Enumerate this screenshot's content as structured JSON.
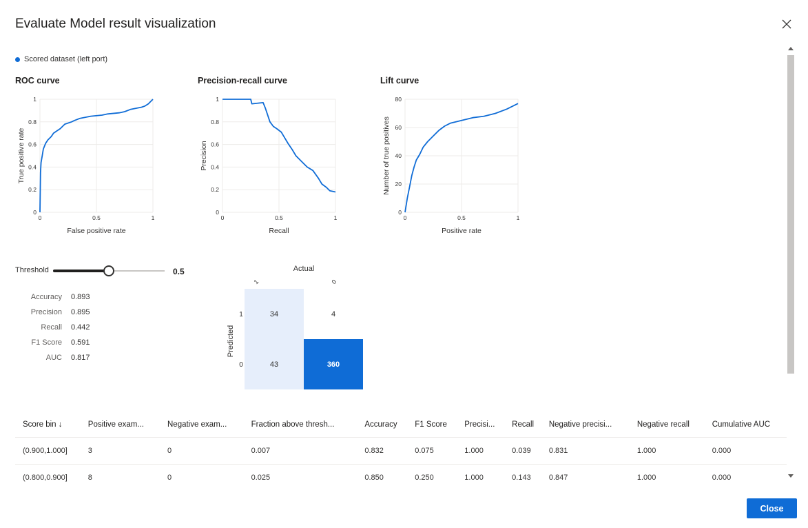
{
  "dialog": {
    "title": "Evaluate Model result visualization",
    "close_icon": "close-icon",
    "close_label": "Close"
  },
  "legend": {
    "label": "Scored dataset (left port)",
    "color": "#0f6cd6"
  },
  "roc_title": "ROC curve",
  "pr_title": "Precision-recall curve",
  "lift_title": "Lift curve",
  "chart_data": [
    {
      "type": "line",
      "title": "ROC curve",
      "xlabel": "False positive rate",
      "ylabel": "True positive rate",
      "xlim": [
        0,
        1
      ],
      "ylim": [
        0,
        1
      ],
      "xticks": [
        "0",
        "0.5",
        "1"
      ],
      "yticks": [
        "0",
        "0.2",
        "0.4",
        "0.6",
        "0.8",
        "1"
      ],
      "series": [
        {
          "x": [
            0,
            0.005,
            0.01,
            0.02,
            0.03,
            0.05,
            0.07,
            0.1,
            0.12,
            0.15,
            0.18,
            0.22,
            0.28,
            0.3,
            0.35,
            0.45,
            0.55,
            0.6,
            0.7,
            0.75,
            0.8,
            0.85,
            0.9,
            0.93,
            0.96,
            0.98,
            1.0
          ],
          "y": [
            0,
            0.35,
            0.44,
            0.5,
            0.56,
            0.61,
            0.64,
            0.67,
            0.7,
            0.72,
            0.74,
            0.78,
            0.8,
            0.81,
            0.83,
            0.85,
            0.86,
            0.87,
            0.88,
            0.89,
            0.91,
            0.92,
            0.93,
            0.94,
            0.96,
            0.98,
            1.0
          ]
        }
      ]
    },
    {
      "type": "line",
      "title": "Precision-recall curve",
      "xlabel": "Recall",
      "ylabel": "Precision",
      "xlim": [
        0,
        1
      ],
      "ylim": [
        0,
        1
      ],
      "xticks": [
        "0",
        "0.5",
        "1"
      ],
      "yticks": [
        "0",
        "0.2",
        "0.4",
        "0.6",
        "0.8",
        "1"
      ],
      "series": [
        {
          "x": [
            0,
            0.25,
            0.26,
            0.36,
            0.38,
            0.42,
            0.45,
            0.48,
            0.52,
            0.55,
            0.58,
            0.62,
            0.65,
            0.7,
            0.75,
            0.8,
            0.85,
            0.88,
            0.92,
            0.95,
            1.0
          ],
          "y": [
            1.0,
            1.0,
            0.96,
            0.97,
            0.92,
            0.8,
            0.76,
            0.74,
            0.71,
            0.66,
            0.61,
            0.55,
            0.5,
            0.45,
            0.4,
            0.37,
            0.3,
            0.25,
            0.22,
            0.19,
            0.18
          ]
        }
      ]
    },
    {
      "type": "line",
      "title": "Lift curve",
      "xlabel": "Positive rate",
      "ylabel": "Number of true positives",
      "xlim": [
        0,
        1
      ],
      "ylim": [
        0,
        80
      ],
      "xticks": [
        "0",
        "0.5",
        "1"
      ],
      "yticks": [
        "0",
        "20",
        "40",
        "60",
        "80"
      ],
      "series": [
        {
          "x": [
            0,
            0.02,
            0.04,
            0.06,
            0.08,
            0.1,
            0.13,
            0.16,
            0.2,
            0.25,
            0.3,
            0.35,
            0.4,
            0.5,
            0.55,
            0.6,
            0.7,
            0.8,
            0.9,
            1.0
          ],
          "y": [
            0,
            10,
            18,
            26,
            32,
            37,
            41,
            46,
            50,
            54,
            58,
            61,
            63,
            65,
            66,
            67,
            68,
            70,
            73,
            77
          ]
        }
      ]
    }
  ],
  "threshold": {
    "label": "Threshold",
    "value": "0.5",
    "fraction": 0.5
  },
  "metrics": [
    {
      "name": "Accuracy",
      "value": "0.893"
    },
    {
      "name": "Precision",
      "value": "0.895"
    },
    {
      "name": "Recall",
      "value": "0.442"
    },
    {
      "name": "F1 Score",
      "value": "0.591"
    },
    {
      "name": "AUC",
      "value": "0.817"
    }
  ],
  "confusion_matrix": {
    "actual_label": "Actual",
    "predicted_label": "Predicted",
    "col_labels": [
      "1",
      "0"
    ],
    "row_labels": [
      "1",
      "0"
    ],
    "cells": [
      [
        34,
        4
      ],
      [
        43,
        360
      ]
    ],
    "colors": {
      "high": "#0f6cd6",
      "low": "#e6eefb",
      "mid": "#dce6f8"
    }
  },
  "table": {
    "headers": [
      "Score bin ↓",
      "Positive exam...",
      "Negative exam...",
      "Fraction above thresh...",
      "Accuracy",
      "F1 Score",
      "Precisi...",
      "Recall",
      "Negative precisi...",
      "Negative recall",
      "Cumulative AUC"
    ],
    "rows": [
      [
        "(0.900,1.000]",
        "3",
        "0",
        "0.007",
        "0.832",
        "0.075",
        "1.000",
        "0.039",
        "0.831",
        "1.000",
        "0.000"
      ],
      [
        "(0.800,0.900]",
        "8",
        "0",
        "0.025",
        "0.850",
        "0.250",
        "1.000",
        "0.143",
        "0.847",
        "1.000",
        "0.000"
      ]
    ]
  }
}
